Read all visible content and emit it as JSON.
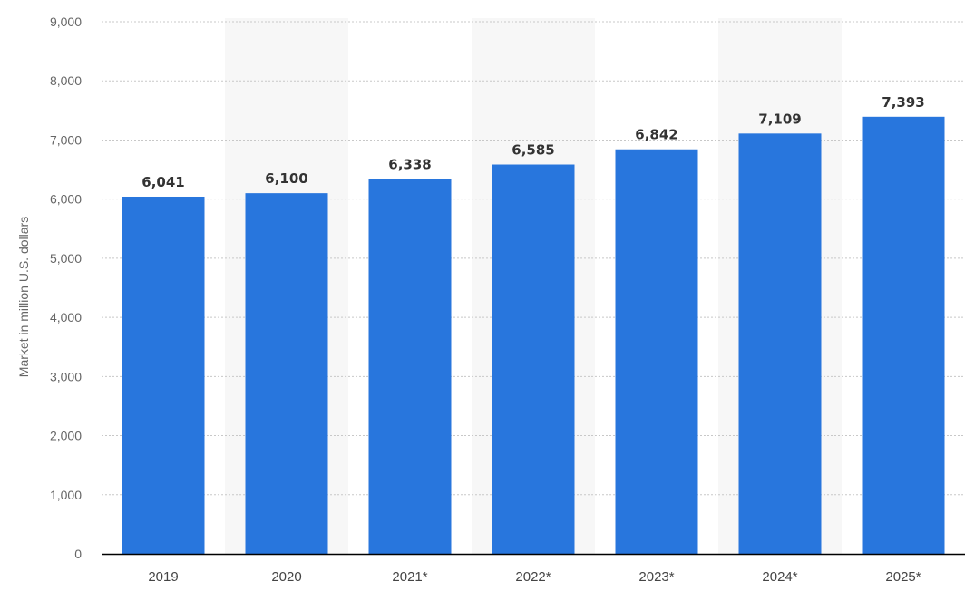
{
  "chart_data": {
    "type": "bar",
    "categories": [
      "2019",
      "2020",
      "2021*",
      "2022*",
      "2023*",
      "2024*",
      "2025*"
    ],
    "series": [
      {
        "values": [
          6041,
          6100,
          6338,
          6585,
          6842,
          7109,
          7393
        ],
        "value_labels": [
          "6,041",
          "6,100",
          "6,338",
          "6,585",
          "6,842",
          "7,109",
          "7,393"
        ],
        "color": "#2876dd"
      }
    ],
    "title": "",
    "xlabel": "",
    "ylabel": "Market in million U.S. dollars",
    "ylim": [
      0,
      9000
    ],
    "yticks": [
      0,
      1000,
      2000,
      3000,
      4000,
      5000,
      6000,
      7000,
      8000,
      9000
    ],
    "ytick_labels": [
      "0",
      "1,000",
      "2,000",
      "3,000",
      "4,000",
      "5,000",
      "6,000",
      "7,000",
      "8,000",
      "9,000"
    ],
    "grid": true,
    "legend": "none",
    "band_color": "#f7f7f7",
    "axis_color": "#000000"
  }
}
